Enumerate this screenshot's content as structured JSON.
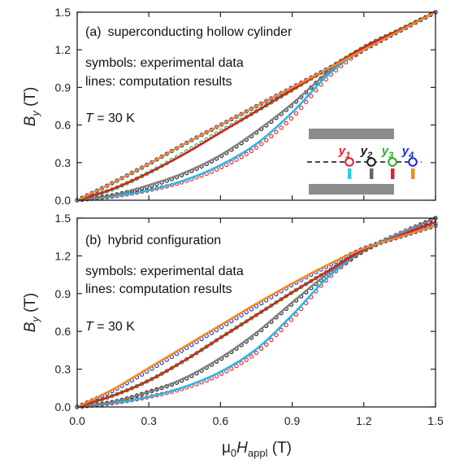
{
  "chart_data": [
    {
      "type": "line",
      "panel_label": "(a)",
      "title": "superconducting hollow cylinder",
      "annotation_symbols": "symbols: experimental data",
      "annotation_lines": "lines: computation results",
      "temperature_var": "T",
      "temperature_value": " = 30 K",
      "ylabel_main": "B",
      "ylabel_sub": "y",
      "ylabel_unit": " (T)",
      "xlim": [
        0,
        1.5
      ],
      "ylim": [
        0,
        1.5
      ],
      "yticks": [
        "0.0",
        "0.3",
        "0.6",
        "0.9",
        "1.2",
        "1.5"
      ],
      "x": [
        0,
        0.15,
        0.3,
        0.45,
        0.6,
        0.75,
        0.9,
        1.05,
        1.2,
        1.35,
        1.5
      ],
      "series": [
        {
          "color": "#e8202a",
          "values": [
            0.0,
            0.03,
            0.08,
            0.15,
            0.26,
            0.42,
            0.66,
            0.98,
            1.2,
            1.35,
            1.5
          ]
        },
        {
          "color": "#1a1a1a",
          "values": [
            0.0,
            0.04,
            0.11,
            0.21,
            0.35,
            0.54,
            0.76,
            1.02,
            1.22,
            1.36,
            1.5
          ]
        },
        {
          "color": "#22b022",
          "values": [
            0.0,
            0.09,
            0.22,
            0.38,
            0.55,
            0.71,
            0.88,
            1.05,
            1.22,
            1.36,
            1.5
          ]
        },
        {
          "color": "#1f2fd0",
          "values": [
            0.0,
            0.14,
            0.29,
            0.45,
            0.6,
            0.75,
            0.9,
            1.05,
            1.2,
            1.35,
            1.5
          ]
        }
      ],
      "lines": [
        {
          "color": "#2ab8e8",
          "values": [
            0.0,
            0.03,
            0.08,
            0.16,
            0.28,
            0.45,
            0.7,
            1.0,
            1.21,
            1.35,
            1.5
          ]
        },
        {
          "color": "#808080",
          "values": [
            0.0,
            0.04,
            0.12,
            0.22,
            0.36,
            0.55,
            0.77,
            1.02,
            1.22,
            1.36,
            1.5
          ]
        },
        {
          "color": "#d21f2a",
          "values": [
            0.0,
            0.09,
            0.22,
            0.37,
            0.54,
            0.71,
            0.88,
            1.05,
            1.22,
            1.36,
            1.5
          ]
        },
        {
          "color": "#f28a1e",
          "values": [
            0.0,
            0.14,
            0.29,
            0.45,
            0.6,
            0.75,
            0.9,
            1.05,
            1.2,
            1.35,
            1.5
          ]
        }
      ],
      "legend": {
        "labels": [
          {
            "base": "y",
            "sub": "1",
            "color": "#e8202a"
          },
          {
            "base": "y",
            "sub": "2",
            "color": "#1a1a1a"
          },
          {
            "base": "y",
            "sub": "3",
            "color": "#22b022"
          },
          {
            "base": "y",
            "sub": "4",
            "color": "#1f2fd0"
          }
        ],
        "bar_colors": [
          "#2ad0d8",
          "#666666",
          "#e0202a",
          "#f28a1e"
        ],
        "plate_color": "#8c8c8c"
      }
    },
    {
      "type": "line",
      "panel_label": "(b)",
      "title": "hybrid configuration",
      "annotation_symbols": "symbols: experimental data",
      "annotation_lines": "lines: computation results",
      "temperature_var": "T",
      "temperature_value": " = 30 K",
      "ylabel_main": "B",
      "ylabel_sub": "y",
      "ylabel_unit": " (T)",
      "xlabel_mu": "μ",
      "xlabel_zero": "0",
      "xlabel_H": "H",
      "xlabel_sub": "appl",
      "xlabel_unit": " (T)",
      "xlim": [
        0,
        1.5
      ],
      "ylim": [
        0,
        1.5
      ],
      "xticks": [
        "0.0",
        "0.3",
        "0.6",
        "0.9",
        "1.2",
        "1.5"
      ],
      "yticks": [
        "0.0",
        "0.3",
        "0.6",
        "0.9",
        "1.2",
        "1.5"
      ],
      "x": [
        0,
        0.15,
        0.3,
        0.45,
        0.6,
        0.75,
        0.9,
        1.05,
        1.2,
        1.35,
        1.5
      ],
      "series": [
        {
          "color": "#e8202a",
          "values": [
            0.0,
            0.03,
            0.08,
            0.15,
            0.26,
            0.43,
            0.7,
            1.02,
            1.24,
            1.38,
            1.5
          ]
        },
        {
          "color": "#1a1a1a",
          "values": [
            0.0,
            0.04,
            0.12,
            0.22,
            0.38,
            0.58,
            0.82,
            1.05,
            1.24,
            1.37,
            1.5
          ]
        },
        {
          "color": "#22b022",
          "values": [
            0.0,
            0.09,
            0.21,
            0.37,
            0.55,
            0.73,
            0.91,
            1.08,
            1.25,
            1.36,
            1.46
          ]
        },
        {
          "color": "#1f2fd0",
          "values": [
            0.0,
            0.13,
            0.29,
            0.46,
            0.63,
            0.8,
            0.97,
            1.12,
            1.26,
            1.35,
            1.44
          ]
        }
      ],
      "lines": [
        {
          "color": "#2ab8e8",
          "values": [
            0.0,
            0.03,
            0.08,
            0.16,
            0.28,
            0.46,
            0.73,
            1.03,
            1.24,
            1.38,
            1.5
          ]
        },
        {
          "color": "#808080",
          "values": [
            0.0,
            0.04,
            0.12,
            0.23,
            0.39,
            0.59,
            0.83,
            1.06,
            1.24,
            1.37,
            1.5
          ]
        },
        {
          "color": "#d21f2a",
          "values": [
            0.0,
            0.09,
            0.21,
            0.37,
            0.55,
            0.73,
            0.91,
            1.08,
            1.25,
            1.36,
            1.47
          ]
        },
        {
          "color": "#f28a1e",
          "values": [
            0.0,
            0.14,
            0.31,
            0.48,
            0.65,
            0.82,
            0.98,
            1.13,
            1.26,
            1.35,
            1.44
          ]
        }
      ]
    }
  ]
}
